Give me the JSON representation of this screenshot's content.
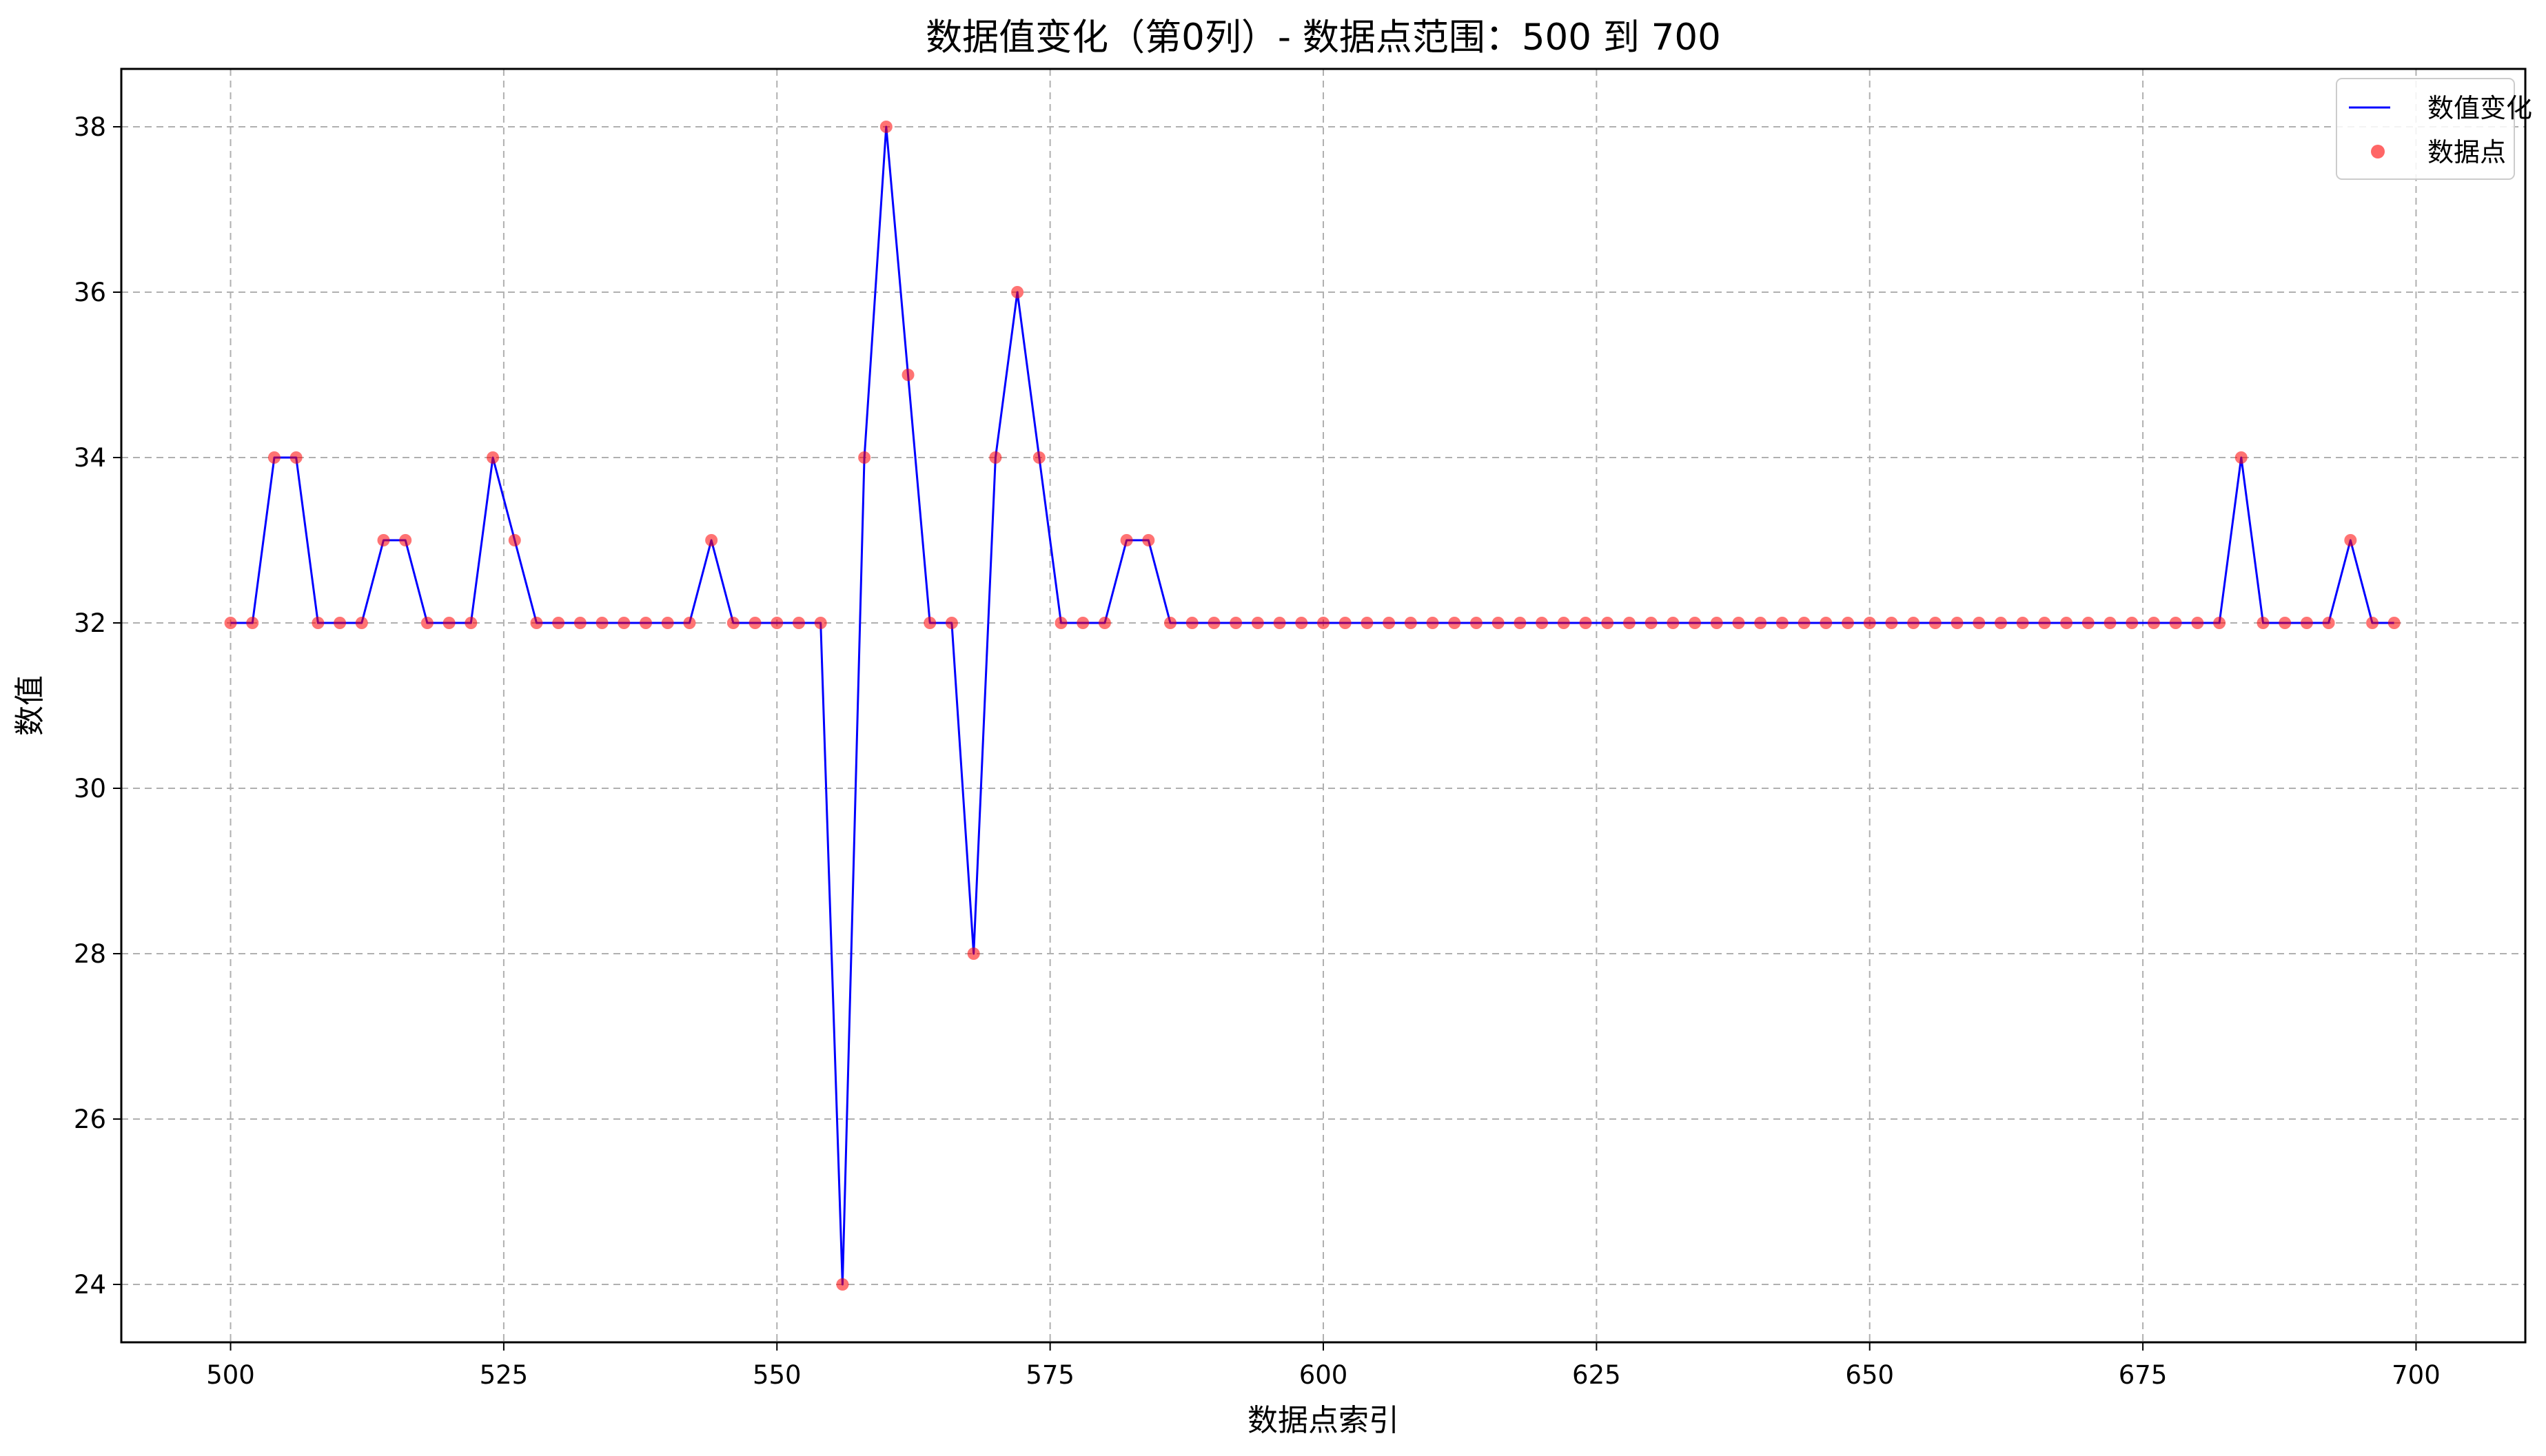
{
  "chart_data": {
    "type": "line",
    "title": "数据值变化（第0列）- 数据点范围：500 到 700",
    "xlabel": "数据点索引",
    "ylabel": "数值",
    "xlim": [
      490,
      710
    ],
    "ylim": [
      23.3,
      38.7
    ],
    "xticks": [
      500,
      525,
      550,
      575,
      600,
      625,
      650,
      675,
      700
    ],
    "yticks": [
      24,
      26,
      28,
      30,
      32,
      34,
      36,
      38
    ],
    "grid": true,
    "legend_position": "top-right",
    "series": [
      {
        "name": "数值变化",
        "kind": "line",
        "color": "#0000ff"
      },
      {
        "name": "数据点",
        "kind": "scatter",
        "color": "#ff0000"
      }
    ],
    "x": [
      500,
      502,
      504,
      506,
      508,
      510,
      512,
      514,
      516,
      518,
      520,
      522,
      524,
      526,
      528,
      530,
      532,
      534,
      536,
      538,
      540,
      542,
      544,
      546,
      548,
      550,
      552,
      554,
      556,
      558,
      560,
      562,
      564,
      566,
      568,
      570,
      572,
      574,
      576,
      578,
      580,
      582,
      584,
      586,
      588,
      590,
      592,
      594,
      596,
      598,
      600,
      602,
      604,
      606,
      608,
      610,
      612,
      614,
      616,
      618,
      620,
      622,
      624,
      626,
      628,
      630,
      632,
      634,
      636,
      638,
      640,
      642,
      644,
      646,
      648,
      650,
      652,
      654,
      656,
      658,
      660,
      662,
      664,
      666,
      668,
      670,
      672,
      674,
      676,
      678,
      680,
      682,
      684,
      686,
      688,
      690,
      692,
      694,
      696,
      698
    ],
    "y": [
      32,
      32,
      34,
      34,
      32,
      32,
      32,
      33,
      33,
      32,
      32,
      32,
      34,
      33,
      32,
      32,
      32,
      32,
      32,
      32,
      32,
      32,
      33,
      32,
      32,
      32,
      32,
      32,
      24,
      34,
      38,
      35,
      32,
      32,
      28,
      34,
      36,
      34,
      32,
      32,
      32,
      33,
      33,
      32,
      32,
      32,
      32,
      32,
      32,
      32,
      32,
      32,
      32,
      32,
      32,
      32,
      32,
      32,
      32,
      32,
      32,
      32,
      32,
      32,
      32,
      32,
      32,
      32,
      32,
      32,
      32,
      32,
      32,
      32,
      32,
      32,
      32,
      32,
      32,
      32,
      32,
      32,
      32,
      32,
      32,
      32,
      32,
      32,
      32,
      32,
      32,
      32,
      34,
      32,
      32,
      32,
      32,
      33,
      32,
      32
    ]
  }
}
